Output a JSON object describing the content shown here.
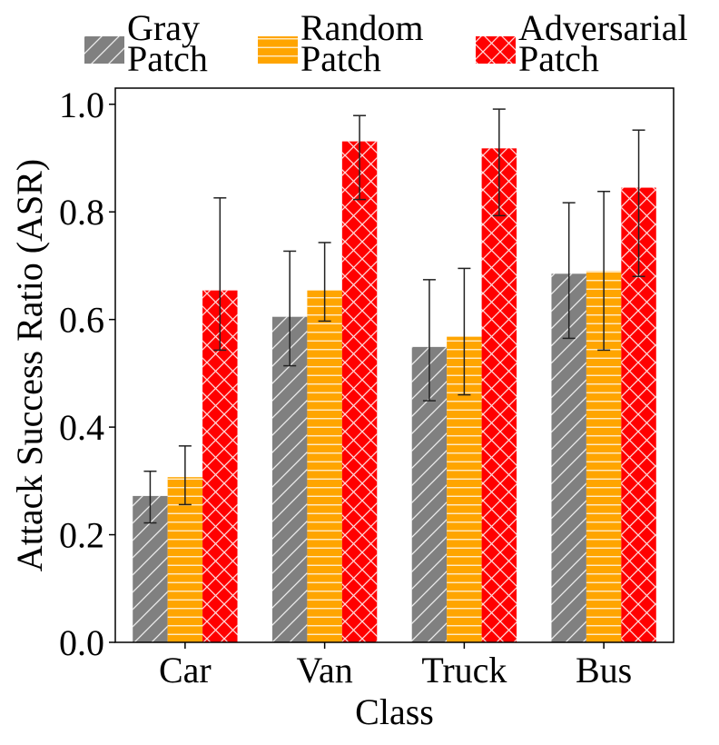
{
  "chart_data": {
    "type": "bar",
    "title": "",
    "xlabel": "Class",
    "ylabel": "Attack Success Ratio (ASR)",
    "ylim": [
      0,
      1.03
    ],
    "yticks": [
      0.0,
      0.2,
      0.4,
      0.6,
      0.8,
      1.0
    ],
    "ytick_labels": [
      "0.0",
      "0.2",
      "0.4",
      "0.6",
      "0.8",
      "1.0"
    ],
    "categories": [
      "Car",
      "Van",
      "Truck",
      "Bus"
    ],
    "legend_position": "top",
    "series": [
      {
        "name": "Gray Patch",
        "label_lines": [
          "Gray",
          "Patch"
        ],
        "color": "#808080",
        "hatch": "diagonal",
        "values": [
          0.272,
          0.605,
          0.549,
          0.685
        ],
        "err_low": [
          0.222,
          0.514,
          0.449,
          0.565
        ],
        "err_high": [
          0.318,
          0.727,
          0.674,
          0.817
        ]
      },
      {
        "name": "Random Patch",
        "label_lines": [
          "Random",
          "Patch"
        ],
        "color": "#ffa500",
        "hatch": "horizontal",
        "values": [
          0.307,
          0.654,
          0.568,
          0.69
        ],
        "err_low": [
          0.256,
          0.597,
          0.46,
          0.543
        ],
        "err_high": [
          0.365,
          0.743,
          0.695,
          0.838
        ]
      },
      {
        "name": "Adversarial Patch",
        "label_lines": [
          "Adversarial",
          "Patch"
        ],
        "color": "#ff0000",
        "hatch": "crosshatch",
        "values": [
          0.654,
          0.931,
          0.918,
          0.845
        ],
        "err_low": [
          0.543,
          0.823,
          0.793,
          0.68
        ],
        "err_high": [
          0.826,
          0.979,
          0.991,
          0.952
        ]
      }
    ]
  }
}
